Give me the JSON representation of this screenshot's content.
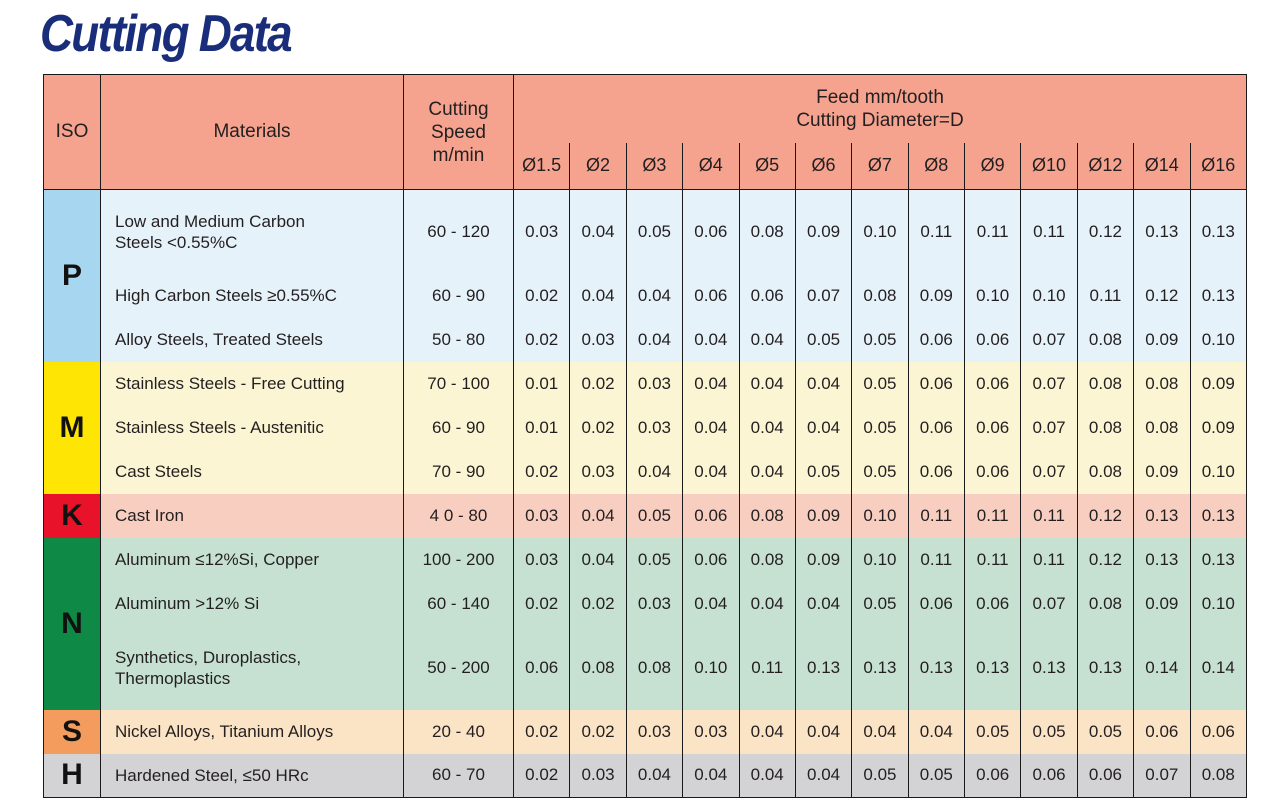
{
  "page": {
    "title": "Cutting Data",
    "title_color": "#1a2d7a"
  },
  "table": {
    "header": {
      "bg": "#f5a38f",
      "iso": "ISO",
      "materials": "Materials",
      "cutting_speed": "Cutting\nSpeed\nm/min",
      "feed_title": "Feed mm/tooth\nCutting Diameter=D",
      "diameters": [
        "Ø1.5",
        "Ø2",
        "Ø3",
        "Ø4",
        "Ø5",
        "Ø6",
        "Ø7",
        "Ø8",
        "Ø9",
        "Ø10",
        "Ø12",
        "Ø14",
        "Ø16"
      ]
    },
    "groups": [
      {
        "iso": "P",
        "iso_bg": "#a7d6f0",
        "row_bg": "#e6f2fa",
        "rows": [
          {
            "material": "Low and Medium Carbon\nSteels <0.55%C",
            "speed": "60 - 120",
            "feeds": [
              "0.03",
              "0.04",
              "0.05",
              "0.06",
              "0.08",
              "0.09",
              "0.10",
              "0.11",
              "0.11",
              "0.11",
              "0.12",
              "0.13",
              "0.13"
            ]
          },
          {
            "material": "High Carbon Steels ≥0.55%C",
            "speed": "60 - 90",
            "feeds": [
              "0.02",
              "0.04",
              "0.04",
              "0.06",
              "0.06",
              "0.07",
              "0.08",
              "0.09",
              "0.10",
              "0.10",
              "0.11",
              "0.12",
              "0.13"
            ]
          },
          {
            "material": "Alloy Steels, Treated Steels",
            "speed": "50 - 80",
            "feeds": [
              "0.02",
              "0.03",
              "0.04",
              "0.04",
              "0.04",
              "0.05",
              "0.05",
              "0.06",
              "0.06",
              "0.07",
              "0.08",
              "0.09",
              "0.10"
            ]
          }
        ]
      },
      {
        "iso": "M",
        "iso_bg": "#ffe503",
        "row_bg": "#fcf5d3",
        "rows": [
          {
            "material": "Stainless Steels - Free Cutting",
            "speed": "70 - 100",
            "feeds": [
              "0.01",
              "0.02",
              "0.03",
              "0.04",
              "0.04",
              "0.04",
              "0.05",
              "0.06",
              "0.06",
              "0.07",
              "0.08",
              "0.08",
              "0.09"
            ]
          },
          {
            "material": "Stainless Steels - Austenitic",
            "speed": "60 - 90",
            "feeds": [
              "0.01",
              "0.02",
              "0.03",
              "0.04",
              "0.04",
              "0.04",
              "0.05",
              "0.06",
              "0.06",
              "0.07",
              "0.08",
              "0.08",
              "0.09"
            ]
          },
          {
            "material": "Cast Steels",
            "speed": "70 - 90",
            "feeds": [
              "0.02",
              "0.03",
              "0.04",
              "0.04",
              "0.04",
              "0.05",
              "0.05",
              "0.06",
              "0.06",
              "0.07",
              "0.08",
              "0.09",
              "0.10"
            ]
          }
        ]
      },
      {
        "iso": "K",
        "iso_bg": "#e8132b",
        "row_bg": "#f7cec0",
        "rows": [
          {
            "material": "Cast Iron",
            "speed": "4 0 - 80",
            "feeds": [
              "0.03",
              "0.04",
              "0.05",
              "0.06",
              "0.08",
              "0.09",
              "0.10",
              "0.11",
              "0.11",
              "0.11",
              "0.12",
              "0.13",
              "0.13"
            ]
          }
        ]
      },
      {
        "iso": "N",
        "iso_bg": "#0e8a46",
        "row_bg": "#c6e1d1",
        "rows": [
          {
            "material": "Aluminum ≤12%Si, Copper",
            "speed": "100 - 200",
            "feeds": [
              "0.03",
              "0.04",
              "0.05",
              "0.06",
              "0.08",
              "0.09",
              "0.10",
              "0.11",
              "0.11",
              "0.11",
              "0.12",
              "0.13",
              "0.13"
            ]
          },
          {
            "material": "Aluminum >12% Si",
            "speed": "60 - 140",
            "feeds": [
              "0.02",
              "0.02",
              "0.03",
              "0.04",
              "0.04",
              "0.04",
              "0.05",
              "0.06",
              "0.06",
              "0.07",
              "0.08",
              "0.09",
              "0.10"
            ]
          },
          {
            "material": "Synthetics, Duroplastics,\nThermoplastics",
            "speed": "50 - 200",
            "feeds": [
              "0.06",
              "0.08",
              "0.08",
              "0.10",
              "0.11",
              "0.13",
              "0.13",
              "0.13",
              "0.13",
              "0.13",
              "0.13",
              "0.14",
              "0.14"
            ]
          }
        ]
      },
      {
        "iso": "S",
        "iso_bg": "#f49c5d",
        "row_bg": "#fbe3c5",
        "rows": [
          {
            "material": "Nickel Alloys, Titanium Alloys",
            "speed": "20 - 40",
            "feeds": [
              "0.02",
              "0.02",
              "0.03",
              "0.03",
              "0.04",
              "0.04",
              "0.04",
              "0.04",
              "0.05",
              "0.05",
              "0.05",
              "0.06",
              "0.06"
            ]
          }
        ]
      },
      {
        "iso": "H",
        "iso_bg": "#d3d3d5",
        "row_bg": "#d3d3d5",
        "rows": [
          {
            "material": "Hardened Steel, ≤50 HRc",
            "speed": "60 - 70",
            "feeds": [
              "0.02",
              "0.03",
              "0.04",
              "0.04",
              "0.04",
              "0.04",
              "0.05",
              "0.05",
              "0.06",
              "0.06",
              "0.06",
              "0.07",
              "0.08"
            ]
          }
        ]
      }
    ]
  }
}
